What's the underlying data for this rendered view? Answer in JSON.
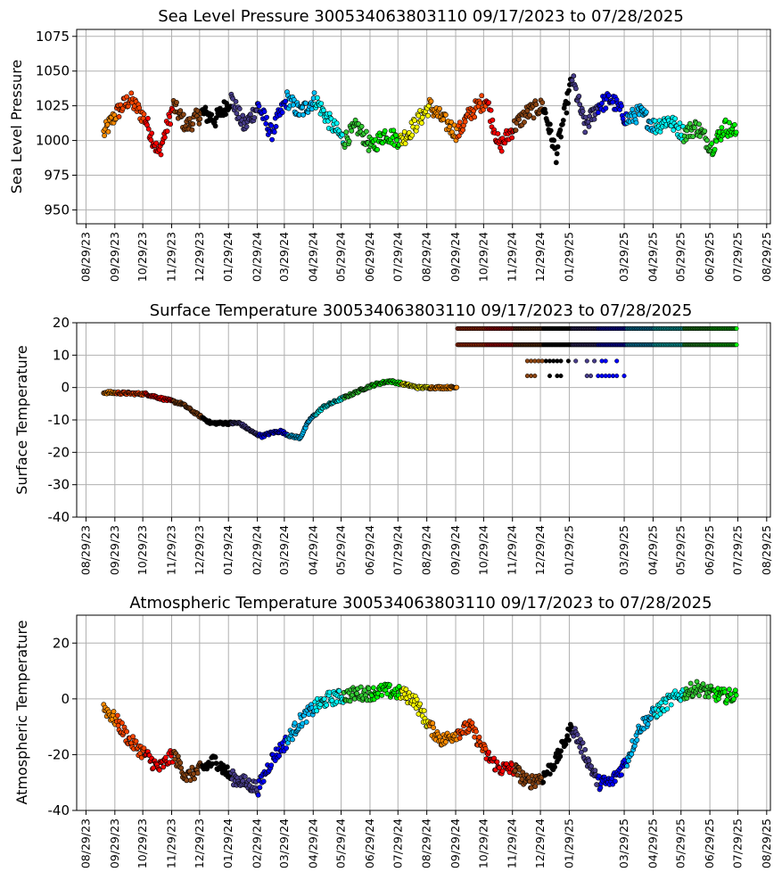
{
  "page": {
    "background": "#ffffff"
  },
  "x_ticks": [
    "08/29/23",
    "09/29/23",
    "10/29/23",
    "11/29/23",
    "12/29/23",
    "01/29/24",
    "02/29/24",
    "03/29/24",
    "04/29/24",
    "05/29/24",
    "06/29/24",
    "07/29/24",
    "08/29/24",
    "09/29/24",
    "10/29/24",
    "11/29/24",
    "12/29/24",
    "01/29/25",
    "03/29/25",
    "04/29/25",
    "05/29/25",
    "06/29/25",
    "07/29/25",
    "08/29/25"
  ],
  "x_range": [
    "2023-08-19",
    "2025-09-02"
  ],
  "month_colors": [
    "#ff8c00",
    "#ff4500",
    "#ff0000",
    "#8b4513",
    "#000000",
    "#483d8b",
    "#0000ff",
    "#00bfff",
    "#00ffff",
    "#32cd32",
    "#00ff00",
    "#ffff00"
  ],
  "chart_data": [
    {
      "type": "scatter",
      "title": "Sea Level Pressure 300534063803110  09/17/2023 to 07/28/2025",
      "ylabel": "Sea Level Pressure",
      "xlabel": "",
      "ylim": [
        940,
        1080
      ],
      "yticks": [
        950,
        975,
        1000,
        1025,
        1050,
        1075
      ],
      "grid": true,
      "series": [
        {
          "x": [
            "2023-09-17",
            "2023-10-01",
            "2023-10-15",
            "2023-11-01",
            "2023-11-15",
            "2023-12-01",
            "2023-12-15",
            "2024-01-01",
            "2024-01-15",
            "2024-02-01",
            "2024-02-15",
            "2024-03-01",
            "2024-03-15",
            "2024-04-01",
            "2024-04-15",
            "2024-05-01",
            "2024-05-15",
            "2024-06-01",
            "2024-06-15",
            "2024-07-01",
            "2024-07-15",
            "2024-08-01",
            "2024-08-15",
            "2024-09-01",
            "2024-09-15",
            "2024-10-01",
            "2024-10-15",
            "2024-11-01",
            "2024-11-15",
            "2024-12-01",
            "2024-12-15",
            "2025-01-01",
            "2025-01-15",
            "2025-02-01",
            "2025-02-15",
            "2025-03-01",
            "2025-03-15",
            "2025-04-01",
            "2025-04-15",
            "2025-05-01",
            "2025-05-15",
            "2025-06-01",
            "2025-06-15",
            "2025-07-01",
            "2025-07-15",
            "2025-07-28"
          ],
          "y": [
            1005,
            1020,
            1030,
            1015,
            990,
            1025,
            1010,
            1020,
            1015,
            1030,
            1010,
            1025,
            1005,
            1030,
            1020,
            1030,
            1015,
            1000,
            1010,
            995,
            1005,
            1000,
            1010,
            1025,
            1015,
            1005,
            1020,
            1030,
            995,
            1010,
            1020,
            1025,
            990,
            1045,
            1010,
            1025,
            1030,
            1015,
            1020,
            1010,
            1015,
            1005,
            1010,
            995,
            1010,
            1005
          ],
          "spread": 12
        }
      ]
    },
    {
      "type": "scatter",
      "title": "Surface Temperature 300534063803110  09/17/2023 to 07/28/2025",
      "ylabel": "Surface Temperature",
      "xlabel": "",
      "ylim": [
        -40,
        20
      ],
      "yticks": [
        -40,
        -30,
        -20,
        -10,
        0,
        10,
        20
      ],
      "grid": true,
      "series": [
        {
          "x": [
            "2023-09-17",
            "2023-10-15",
            "2023-11-01",
            "2023-11-20",
            "2023-12-10",
            "2023-12-25",
            "2024-01-10",
            "2024-01-25",
            "2024-02-10",
            "2024-02-25",
            "2024-03-05",
            "2024-03-15",
            "2024-03-25",
            "2024-04-05",
            "2024-04-15",
            "2024-04-25",
            "2024-05-10",
            "2024-05-25",
            "2024-06-10",
            "2024-06-25",
            "2024-07-05",
            "2024-07-20",
            "2024-08-05",
            "2024-08-20",
            "2024-09-05",
            "2024-09-20",
            "2024-10-01"
          ],
          "y": [
            -1.5,
            -1.8,
            -2,
            -3.5,
            -5,
            -8,
            -11,
            -11,
            -11,
            -14,
            -15,
            -14,
            -13.5,
            -15,
            -15.5,
            -10,
            -6,
            -4,
            -2,
            0,
            1,
            2,
            1,
            0,
            0,
            0,
            0
          ],
          "spread": 0.8
        },
        {
          "constant": 18.2,
          "x_range": [
            "2024-10-01",
            "2025-07-28"
          ]
        },
        {
          "constant": 13.2,
          "x_range": [
            "2024-10-01",
            "2025-07-28"
          ]
        },
        {
          "constant": 8.2,
          "x_range": [
            "2024-12-15",
            "2025-03-31"
          ],
          "sparse": true
        },
        {
          "constant": 3.6,
          "x_range": [
            "2024-12-15",
            "2025-03-31"
          ],
          "sparse": true
        }
      ]
    },
    {
      "type": "scatter",
      "title": "Atmospheric Temperature 300534063803110  09/17/2023 to 07/28/2025",
      "ylabel": "Atmospheric Temperature",
      "xlabel": "",
      "ylim": [
        -40,
        30
      ],
      "yticks": [
        -40,
        -20,
        0,
        20
      ],
      "grid": true,
      "series": [
        {
          "x": [
            "2023-09-17",
            "2023-10-01",
            "2023-10-15",
            "2023-11-01",
            "2023-11-15",
            "2023-12-01",
            "2023-12-15",
            "2024-01-01",
            "2024-01-15",
            "2024-02-01",
            "2024-02-15",
            "2024-03-01",
            "2024-03-15",
            "2024-04-01",
            "2024-04-15",
            "2024-05-01",
            "2024-05-15",
            "2024-06-01",
            "2024-06-15",
            "2024-07-01",
            "2024-07-15",
            "2024-08-01",
            "2024-08-15",
            "2024-09-01",
            "2024-09-15",
            "2024-10-01",
            "2024-10-15",
            "2024-11-01",
            "2024-11-15",
            "2024-12-01",
            "2024-12-15",
            "2025-01-01",
            "2025-01-15",
            "2025-02-01",
            "2025-02-15",
            "2025-03-01",
            "2025-03-15",
            "2025-04-01",
            "2025-04-15",
            "2025-05-01",
            "2025-05-15",
            "2025-06-01",
            "2025-06-15",
            "2025-07-01",
            "2025-07-15",
            "2025-07-28"
          ],
          "y": [
            -3,
            -8,
            -15,
            -20,
            -25,
            -20,
            -28,
            -25,
            -22,
            -28,
            -30,
            -32,
            -22,
            -15,
            -8,
            -3,
            0,
            1,
            2,
            2,
            3,
            2,
            0,
            -10,
            -15,
            -12,
            -10,
            -20,
            -25,
            -25,
            -30,
            -28,
            -22,
            -10,
            -20,
            -30,
            -30,
            -22,
            -10,
            -5,
            -1,
            2,
            4,
            2,
            1,
            1
          ],
          "spread": 5
        }
      ]
    }
  ]
}
